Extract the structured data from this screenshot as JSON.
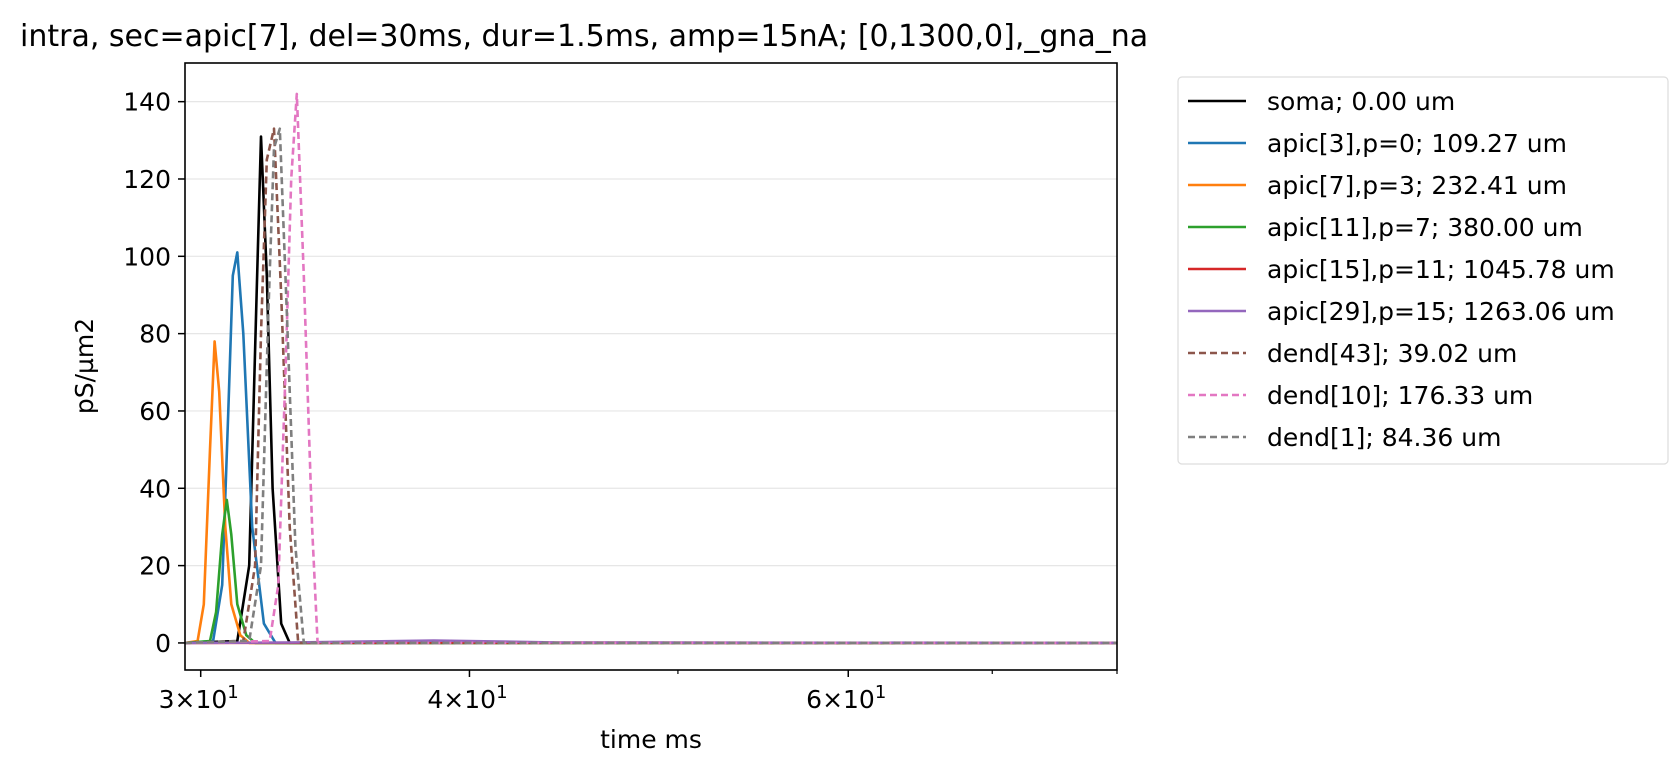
{
  "chart_data": {
    "type": "line",
    "title": "intra, sec=apic[7], del=30ms, dur=1.5ms, amp=15nA; [0,1300,0],_gna_na",
    "xlabel": "time ms",
    "ylabel": "pS/µm2",
    "xscale": "log",
    "xlim": [
      29.5,
      80
    ],
    "ylim": [
      -7,
      150
    ],
    "x_ticks": [
      {
        "value": 30,
        "base": "3",
        "exp": "1"
      },
      {
        "value": 40,
        "base": "4",
        "exp": "1"
      },
      {
        "value": 60,
        "base": "6",
        "exp": "1"
      }
    ],
    "x_minor_ticks": [
      50,
      70,
      80
    ],
    "y_ticks": [
      0,
      20,
      40,
      60,
      80,
      100,
      120,
      140
    ],
    "grid": "horizontal",
    "legend_position": "outside-right",
    "series": [
      {
        "name": "soma; 0.00 um",
        "color": "#000000",
        "style": "solid",
        "x": [
          29.5,
          31.2,
          31.6,
          31.85,
          32.0,
          32.2,
          32.4,
          32.7,
          33.0,
          80
        ],
        "y": [
          0,
          0.5,
          20,
          90,
          131,
          95,
          40,
          5,
          0,
          0
        ]
      },
      {
        "name": "apic[3],p=0; 109.27 um",
        "color": "#1f77b4",
        "style": "solid",
        "x": [
          29.5,
          30.4,
          30.7,
          30.9,
          31.05,
          31.2,
          31.4,
          31.7,
          32.1,
          32.5,
          80
        ],
        "y": [
          0,
          0.5,
          15,
          60,
          95,
          101,
          80,
          30,
          5,
          0,
          0
        ]
      },
      {
        "name": "apic[7],p=3; 232.41 um",
        "color": "#ff7f0e",
        "style": "solid",
        "x": [
          29.5,
          29.9,
          30.1,
          30.3,
          30.45,
          30.6,
          30.8,
          31.0,
          31.3,
          31.6,
          80
        ],
        "y": [
          0,
          0.5,
          10,
          50,
          78,
          65,
          30,
          10,
          2,
          0,
          0
        ]
      },
      {
        "name": "apic[11],p=7; 380.00 um",
        "color": "#2ca02c",
        "style": "solid",
        "x": [
          29.5,
          30.3,
          30.5,
          30.7,
          30.85,
          31.0,
          31.2,
          31.5,
          31.8,
          80
        ],
        "y": [
          0,
          0.5,
          8,
          28,
          37,
          28,
          10,
          2,
          0,
          0
        ]
      },
      {
        "name": "apic[15],p=11; 1045.78 um",
        "color": "#d62728",
        "style": "solid",
        "x": [
          29.5,
          34,
          37,
          40,
          43,
          80
        ],
        "y": [
          0,
          0.05,
          0.1,
          0.1,
          0.05,
          0
        ]
      },
      {
        "name": "apic[29],p=15; 1263.06 um",
        "color": "#9467bd",
        "style": "solid",
        "x": [
          29.5,
          33,
          36,
          38.5,
          41,
          44,
          80
        ],
        "y": [
          0,
          0.1,
          0.4,
          0.6,
          0.4,
          0.1,
          0
        ]
      },
      {
        "name": "dend[43]; 39.02 um",
        "color": "#8c564b",
        "style": "dashed",
        "x": [
          29.5,
          31.4,
          31.8,
          32.0,
          32.2,
          32.45,
          32.7,
          33.0,
          33.3,
          80
        ],
        "y": [
          0,
          0.5,
          20,
          80,
          125,
          133,
          90,
          30,
          0,
          0
        ]
      },
      {
        "name": "dend[10]; 176.33 um",
        "color": "#e377c2",
        "style": "dashed",
        "x": [
          29.5,
          32.3,
          32.6,
          32.85,
          33.05,
          33.25,
          33.5,
          33.8,
          34.0,
          80
        ],
        "y": [
          0,
          0.5,
          15,
          70,
          120,
          142,
          95,
          30,
          0,
          0
        ]
      },
      {
        "name": "dend[1]; 84.36 um",
        "color": "#7f7f7f",
        "style": "dashed",
        "x": [
          29.5,
          31.6,
          32.0,
          32.25,
          32.45,
          32.65,
          32.9,
          33.2,
          33.5,
          80
        ],
        "y": [
          0,
          0.5,
          20,
          85,
          128,
          133,
          85,
          25,
          0,
          0
        ]
      }
    ]
  }
}
